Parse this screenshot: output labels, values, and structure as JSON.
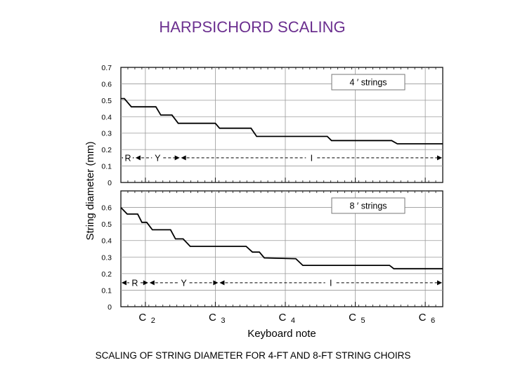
{
  "slide": {
    "title": "HARPSICHORD SCALING",
    "caption": "SCALING OF STRING DIAMETER FOR 4-FT AND 8-FT STRING CHOIRS"
  },
  "chart_data": [
    {
      "type": "line",
      "legend": "4 ′ strings",
      "legend_position": "top-right",
      "ylabel": "String diameter (mm)",
      "xlabel": "Keyboard note",
      "xlim": [
        0,
        46
      ],
      "ylim": [
        0,
        0.7
      ],
      "yticks": [
        "0",
        "0.1",
        "0.2",
        "0.3",
        "0.4",
        "0.5",
        "0.6",
        "0.7"
      ],
      "xticks": [
        {
          "x": 3.5,
          "label": "C",
          "sub": "2"
        },
        {
          "x": 13.5,
          "label": "C",
          "sub": "3"
        },
        {
          "x": 23.5,
          "label": "C",
          "sub": "4"
        },
        {
          "x": 33.5,
          "label": "C",
          "sub": "5"
        },
        {
          "x": 43.5,
          "label": "C",
          "sub": "6"
        }
      ],
      "grid": true,
      "series": [
        {
          "x": [
            0,
            0.5,
            1.5,
            5,
            5.7,
            7.3,
            8.2,
            13.5,
            14.1,
            18.6,
            19.4,
            29.5,
            30.1,
            38.7,
            39.5,
            46
          ],
          "y": [
            0.51,
            0.51,
            0.46,
            0.46,
            0.41,
            0.41,
            0.36,
            0.36,
            0.33,
            0.33,
            0.28,
            0.28,
            0.255,
            0.255,
            0.235,
            0.235
          ]
        }
      ],
      "regions": [
        {
          "label": "R",
          "from": 0,
          "to": 2
        },
        {
          "label": "Y",
          "from": 2,
          "to": 8.5
        },
        {
          "label": "I",
          "from": 8.5,
          "to": 46
        }
      ],
      "region_level": 0.15
    },
    {
      "type": "line",
      "legend": "8 ′ strings",
      "legend_position": "top-right",
      "xlim": [
        0,
        46
      ],
      "ylim": [
        0,
        0.7
      ],
      "yticks": [
        "0",
        "0.1",
        "0.2",
        "0.3",
        "0.4",
        "0.5",
        "0.6"
      ],
      "grid": true,
      "series": [
        {
          "x": [
            0,
            0.9,
            2.4,
            3,
            3.7,
            4.5,
            7.1,
            7.8,
            8.9,
            9.9,
            13,
            17.9,
            18.8,
            19.8,
            20.5,
            25,
            26,
            38.4,
            39,
            46
          ],
          "y": [
            0.6,
            0.56,
            0.56,
            0.51,
            0.51,
            0.465,
            0.465,
            0.41,
            0.41,
            0.365,
            0.365,
            0.365,
            0.33,
            0.33,
            0.295,
            0.29,
            0.25,
            0.25,
            0.23,
            0.23
          ]
        }
      ],
      "regions": [
        {
          "label": "R",
          "from": 0,
          "to": 4
        },
        {
          "label": "Y",
          "from": 4,
          "to": 14
        },
        {
          "label": "I",
          "from": 14,
          "to": 46
        }
      ],
      "region_level": 0.145
    }
  ]
}
